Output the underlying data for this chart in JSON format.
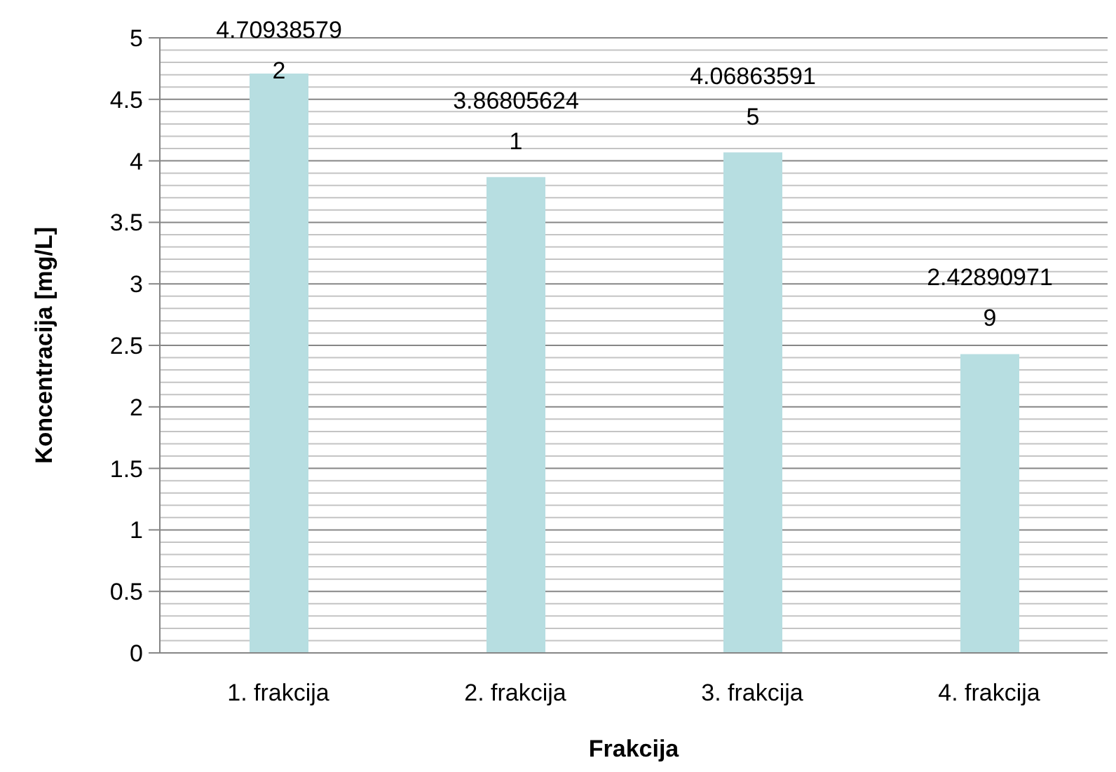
{
  "chart_data": {
    "type": "bar",
    "xlabel": "Frakcija",
    "ylabel": "Koncentracija [mg/L]",
    "categories": [
      "1. frakcija",
      "2. frakcija",
      "3. frakcija",
      "4. frakcija"
    ],
    "values": [
      4.709385792,
      3.868056241,
      4.068635915,
      2.428909719
    ],
    "color": "#b7dee1",
    "ylim": [
      0,
      5
    ],
    "yticks": [
      0,
      {
        "value": 0.1,
        "label": null
      },
      {
        "value": 0.2,
        "label": null
      },
      {
        "value": 0.3,
        "label": null
      },
      {
        "value": 0.4,
        "label": null
      },
      0.5,
      {
        "value": 0.6,
        "label": null
      },
      {
        "value": 0.7,
        "label": null
      },
      {
        "value": 0.8,
        "label": null
      },
      {
        "value": 0.9,
        "label": null
      },
      1,
      {
        "value": 1.1,
        "label": null
      },
      {
        "value": 1.2,
        "label": null
      },
      {
        "value": 1.3,
        "label": null
      },
      {
        "value": 1.4,
        "label": null
      },
      1.5,
      {
        "value": 1.6,
        "label": null
      },
      {
        "value": 1.7,
        "label": null
      },
      {
        "value": 1.8,
        "label": null
      },
      {
        "value": 1.9,
        "label": null
      },
      2,
      {
        "value": 2.1,
        "label": null
      },
      {
        "value": 2.2,
        "label": null
      },
      {
        "value": 2.3,
        "label": null
      },
      {
        "value": 2.4,
        "label": null
      },
      2.5,
      {
        "value": 2.6,
        "label": null
      },
      {
        "value": 2.7,
        "label": null
      },
      {
        "value": 2.8,
        "label": null
      },
      {
        "value": 2.9,
        "label": null
      },
      3,
      {
        "value": 3.1,
        "label": null
      },
      {
        "value": 3.2,
        "label": null
      },
      {
        "value": 3.3,
        "label": null
      },
      {
        "value": 3.4,
        "label": null
      },
      3.5,
      {
        "value": 3.6,
        "label": null
      },
      {
        "value": 3.7,
        "label": null
      },
      {
        "value": 3.8,
        "label": null
      },
      {
        "value": 3.9,
        "label": null
      },
      4,
      {
        "value": 4.1,
        "label": null
      },
      {
        "value": 4.2,
        "label": null
      },
      {
        "value": 4.3,
        "label": null
      },
      {
        "value": 4.4,
        "label": null
      },
      4.5,
      {
        "value": 4.6,
        "label": null
      },
      {
        "value": 4.7,
        "label": null
      },
      {
        "value": 4.8,
        "label": null
      },
      {
        "value": 4.9,
        "label": null
      },
      5
    ],
    "grid": "y",
    "data_labels": true
  }
}
